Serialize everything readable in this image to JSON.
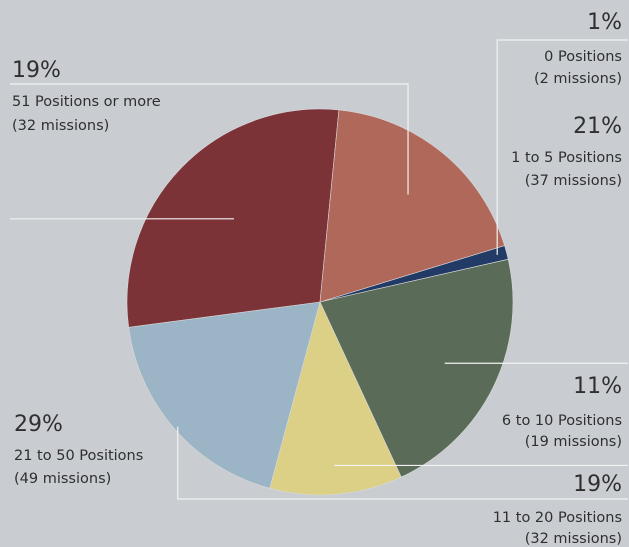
{
  "chart_data": {
    "type": "pie",
    "slices": [
      {
        "percent_label": "1%",
        "line1": "0 Positions",
        "line2": "(2 missions)",
        "missions": 2,
        "color": "#223a66"
      },
      {
        "percent_label": "21%",
        "line1": "1 to 5 Positions",
        "line2": "(37 missions)",
        "missions": 37,
        "color": "#5a6b58"
      },
      {
        "percent_label": "11%",
        "line1": "6 to 10 Positions",
        "line2": "(19 missions)",
        "missions": 19,
        "color": "#dccf86"
      },
      {
        "percent_label": "19%",
        "line1": "11 to 20 Positions",
        "line2": "(32 missions)",
        "missions": 32,
        "color": "#9bb5c6"
      },
      {
        "percent_label": "29%",
        "line1": "21 to 50 Positions",
        "line2": "(49 missions)",
        "missions": 49,
        "color": "#7c3338"
      },
      {
        "percent_label": "19%",
        "line1": "51 Positions or more",
        "line2": "(32 missions)",
        "missions": 32,
        "color": "#b0685a"
      }
    ]
  }
}
